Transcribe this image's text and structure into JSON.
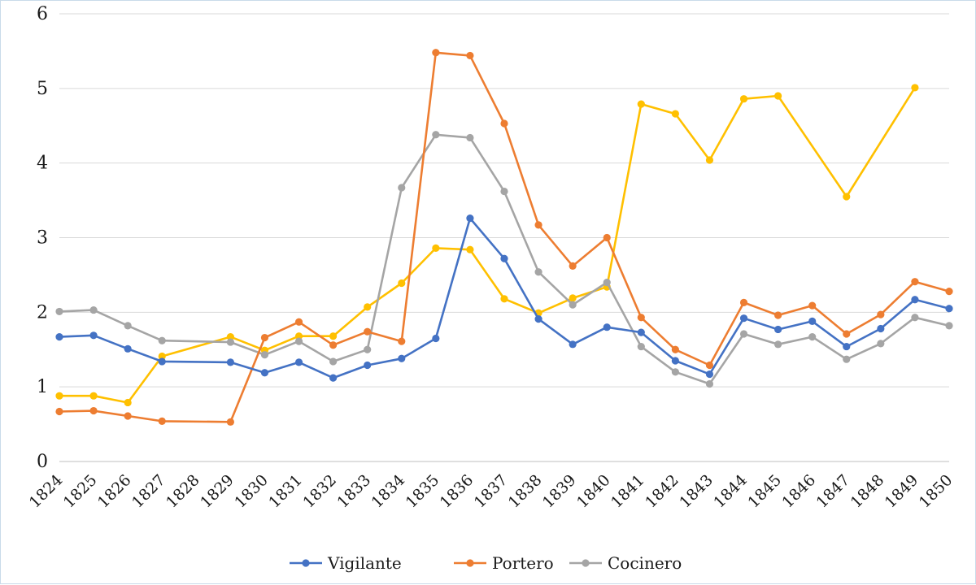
{
  "chart_data": {
    "type": "line",
    "title": "",
    "xlabel": "",
    "ylabel": "",
    "ylim": [
      0,
      6
    ],
    "yticks": [
      "0",
      "1",
      "2",
      "3",
      "4",
      "5",
      "6"
    ],
    "categories": [
      "1824",
      "1825",
      "1826",
      "1827",
      "1828",
      "1829",
      "1830",
      "1831",
      "1832",
      "1833",
      "1834",
      "1835",
      "1836",
      "1837",
      "1838",
      "1839",
      "1840",
      "1841",
      "1842",
      "1843",
      "1844",
      "1845",
      "1846",
      "1847",
      "1848",
      "1849",
      "1850"
    ],
    "grid": true,
    "legend_position": "bottom",
    "series": [
      {
        "name": "Vigilante",
        "color": "#4472c4",
        "values": [
          1.67,
          1.69,
          1.51,
          1.34,
          null,
          1.33,
          1.19,
          1.33,
          1.12,
          1.29,
          1.38,
          1.65,
          3.26,
          2.72,
          1.91,
          1.57,
          1.8,
          1.73,
          1.35,
          1.17,
          1.92,
          1.77,
          1.88,
          1.54,
          1.78,
          2.17,
          2.05
        ]
      },
      {
        "name": "Portero",
        "color": "#ed7d31",
        "values": [
          0.67,
          0.68,
          0.61,
          0.54,
          null,
          0.53,
          1.66,
          1.87,
          1.56,
          1.74,
          1.61,
          5.48,
          5.44,
          4.53,
          3.17,
          2.62,
          3.0,
          1.93,
          1.5,
          1.29,
          2.13,
          1.96,
          2.09,
          1.71,
          1.97,
          2.41,
          2.28
        ]
      },
      {
        "name": "Cocinero",
        "color": "#a5a5a5",
        "values": [
          2.01,
          2.03,
          1.82,
          1.62,
          null,
          1.6,
          1.43,
          1.61,
          1.34,
          1.5,
          3.67,
          4.38,
          4.34,
          3.62,
          2.54,
          2.1,
          2.4,
          1.54,
          1.2,
          1.04,
          1.71,
          1.57,
          1.67,
          1.37,
          1.58,
          1.93,
          1.82
        ]
      },
      {
        "color": "#ffc000",
        "values": [
          0.88,
          0.88,
          0.79,
          1.41,
          null,
          1.67,
          1.49,
          1.68,
          1.68,
          2.07,
          2.39,
          2.86,
          2.84,
          2.18,
          1.99,
          2.19,
          2.34,
          4.79,
          4.66,
          4.04,
          4.86,
          4.9,
          null,
          3.55,
          null,
          5.01,
          null
        ]
      }
    ]
  }
}
